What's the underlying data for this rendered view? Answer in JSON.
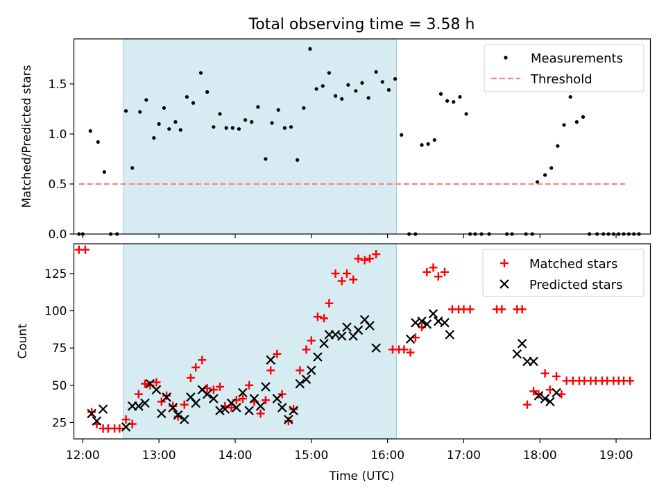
{
  "chart_data": [
    {
      "type": "scatter",
      "title": "Total observing time = 3.58 h",
      "ylabel": "Matched/Predicted stars",
      "xlabel": "",
      "xlim": [
        "11:53",
        "19:27"
      ],
      "ylim": [
        0,
        1.95
      ],
      "x_ticks": [
        "12:00",
        "13:00",
        "14:00",
        "15:00",
        "16:00",
        "17:00",
        "18:00",
        "19:00"
      ],
      "y_ticks": [
        0.0,
        0.5,
        1.0,
        1.5
      ],
      "y_tick_labels": [
        "0.0",
        "0.5",
        "1.0",
        "1.5"
      ],
      "legend": "top-right",
      "shaded_interval": {
        "start": "12:32",
        "end": "16:07",
        "color": "#add8e6"
      },
      "series": [
        {
          "name": "Measurements",
          "marker": "dot",
          "color": "#000000",
          "points": [
            [
              "11:57",
              0.0
            ],
            [
              "12:00",
              0.0
            ],
            [
              "12:06",
              1.03
            ],
            [
              "12:12",
              0.92
            ],
            [
              "12:17",
              0.62
            ],
            [
              "12:22",
              0.0
            ],
            [
              "12:27",
              0.0
            ],
            [
              "12:34",
              1.23
            ],
            [
              "12:39",
              0.66
            ],
            [
              "12:45",
              1.22
            ],
            [
              "12:50",
              1.34
            ],
            [
              "12:56",
              0.96
            ],
            [
              "13:00",
              1.1
            ],
            [
              "13:04",
              1.26
            ],
            [
              "13:08",
              1.05
            ],
            [
              "13:13",
              1.12
            ],
            [
              "13:17",
              1.04
            ],
            [
              "13:22",
              1.37
            ],
            [
              "13:27",
              1.31
            ],
            [
              "13:33",
              1.61
            ],
            [
              "13:38",
              1.42
            ],
            [
              "13:43",
              1.07
            ],
            [
              "13:48",
              1.2
            ],
            [
              "13:53",
              1.06
            ],
            [
              "13:58",
              1.06
            ],
            [
              "14:03",
              1.05
            ],
            [
              "14:08",
              1.14
            ],
            [
              "14:13",
              1.12
            ],
            [
              "14:18",
              1.27
            ],
            [
              "14:24",
              0.75
            ],
            [
              "14:29",
              1.11
            ],
            [
              "14:34",
              1.24
            ],
            [
              "14:39",
              1.06
            ],
            [
              "14:44",
              1.07
            ],
            [
              "14:49",
              0.74
            ],
            [
              "14:54",
              1.26
            ],
            [
              "14:59",
              1.85
            ],
            [
              "15:04",
              1.45
            ],
            [
              "15:09",
              1.48
            ],
            [
              "15:14",
              1.61
            ],
            [
              "15:19",
              1.38
            ],
            [
              "15:24",
              1.35
            ],
            [
              "15:29",
              1.49
            ],
            [
              "15:35",
              1.43
            ],
            [
              "15:40",
              1.51
            ],
            [
              "15:45",
              1.36
            ],
            [
              "15:51",
              1.62
            ],
            [
              "15:56",
              1.52
            ],
            [
              "16:01",
              1.44
            ],
            [
              "16:06",
              1.55
            ],
            [
              "16:11",
              0.99
            ],
            [
              "16:17",
              0.0
            ],
            [
              "16:22",
              0.0
            ],
            [
              "16:27",
              0.89
            ],
            [
              "16:32",
              0.9
            ],
            [
              "16:37",
              0.94
            ],
            [
              "16:42",
              1.4
            ],
            [
              "16:47",
              1.33
            ],
            [
              "16:52",
              1.32
            ],
            [
              "16:57",
              1.37
            ],
            [
              "17:02",
              1.2
            ],
            [
              "17:05",
              0.0
            ],
            [
              "17:09",
              0.0
            ],
            [
              "17:14",
              0.0
            ],
            [
              "17:20",
              0.0
            ],
            [
              "17:34",
              0.0
            ],
            [
              "17:38",
              0.0
            ],
            [
              "17:49",
              0.0
            ],
            [
              "17:54",
              0.0
            ],
            [
              "17:58",
              0.52
            ],
            [
              "18:04",
              0.59
            ],
            [
              "18:09",
              0.66
            ],
            [
              "18:14",
              0.88
            ],
            [
              "18:19",
              1.09
            ],
            [
              "18:24",
              1.37
            ],
            [
              "18:29",
              1.12
            ],
            [
              "18:34",
              1.17
            ],
            [
              "18:39",
              0.0
            ],
            [
              "18:45",
              0.0
            ],
            [
              "18:50",
              0.0
            ],
            [
              "18:54",
              0.0
            ],
            [
              "18:58",
              0.0
            ],
            [
              "19:02",
              0.0
            ],
            [
              "19:06",
              0.0
            ],
            [
              "19:10",
              0.0
            ],
            [
              "19:14",
              0.0
            ],
            [
              "19:18",
              0.0
            ]
          ]
        },
        {
          "name": "Threshold",
          "marker": "dashed-line",
          "color": "#ff7f7f",
          "points": [
            [
              "11:57",
              0.5
            ],
            [
              "19:07",
              0.5
            ]
          ]
        }
      ]
    },
    {
      "type": "scatter",
      "title": "",
      "xlabel": "Time (UTC)",
      "ylabel": "Count",
      "xlim": [
        "11:53",
        "19:27"
      ],
      "ylim": [
        14,
        145
      ],
      "x_ticks": [
        "12:00",
        "13:00",
        "14:00",
        "15:00",
        "16:00",
        "17:00",
        "18:00",
        "19:00"
      ],
      "y_ticks": [
        25,
        50,
        75,
        100,
        125
      ],
      "legend": "top-right",
      "shaded_interval": {
        "start": "12:32",
        "end": "16:07",
        "color": "#add8e6"
      },
      "series": [
        {
          "name": "Matched stars",
          "marker": "plus",
          "color": "#ff0000",
          "points": [
            [
              "11:57",
              141
            ],
            [
              "12:02",
              141
            ],
            [
              "12:07",
              32
            ],
            [
              "12:11",
              24
            ],
            [
              "12:16",
              21
            ],
            [
              "12:20",
              21
            ],
            [
              "12:25",
              21
            ],
            [
              "12:29",
              21
            ],
            [
              "12:34",
              27
            ],
            [
              "12:39",
              24
            ],
            [
              "12:44",
              44
            ],
            [
              "12:49",
              51
            ],
            [
              "12:53",
              50
            ],
            [
              "12:58",
              52
            ],
            [
              "13:02",
              39
            ],
            [
              "13:06",
              43
            ],
            [
              "13:11",
              36
            ],
            [
              "13:15",
              29
            ],
            [
              "13:20",
              37
            ],
            [
              "13:25",
              55
            ],
            [
              "13:29",
              62
            ],
            [
              "13:34",
              67
            ],
            [
              "13:38",
              48
            ],
            [
              "13:43",
              47
            ],
            [
              "13:48",
              49
            ],
            [
              "13:52",
              36
            ],
            [
              "13:57",
              35
            ],
            [
              "14:01",
              40
            ],
            [
              "14:06",
              41
            ],
            [
              "14:11",
              50
            ],
            [
              "14:15",
              39
            ],
            [
              "14:20",
              31
            ],
            [
              "14:24",
              40
            ],
            [
              "14:28",
              60
            ],
            [
              "14:33",
              71
            ],
            [
              "14:37",
              44
            ],
            [
              "14:42",
              26
            ],
            [
              "14:46",
              34
            ],
            [
              "14:51",
              60
            ],
            [
              "14:56",
              74
            ],
            [
              "15:00",
              80
            ],
            [
              "15:05",
              96
            ],
            [
              "15:10",
              95
            ],
            [
              "15:14",
              105
            ],
            [
              "15:19",
              125
            ],
            [
              "15:24",
              120
            ],
            [
              "15:28",
              125
            ],
            [
              "15:33",
              121
            ],
            [
              "15:37",
              135
            ],
            [
              "15:42",
              134
            ],
            [
              "15:46",
              135
            ],
            [
              "15:51",
              138
            ],
            [
              "16:04",
              74
            ],
            [
              "16:09",
              74
            ],
            [
              "16:13",
              74
            ],
            [
              "16:18",
              72
            ],
            [
              "16:22",
              82
            ],
            [
              "16:27",
              89
            ],
            [
              "16:31",
              126
            ],
            [
              "16:36",
              129
            ],
            [
              "16:40",
              123
            ],
            [
              "16:45",
              126
            ],
            [
              "16:51",
              101
            ],
            [
              "16:56",
              101
            ],
            [
              "17:00",
              101
            ],
            [
              "17:05",
              101
            ],
            [
              "17:26",
              101
            ],
            [
              "17:30",
              101
            ],
            [
              "17:42",
              101
            ],
            [
              "17:46",
              101
            ],
            [
              "17:50",
              37
            ],
            [
              "17:55",
              46
            ],
            [
              "17:59",
              44
            ],
            [
              "18:04",
              58
            ],
            [
              "18:08",
              47
            ],
            [
              "18:13",
              56
            ],
            [
              "18:17",
              44
            ],
            [
              "18:21",
              53
            ],
            [
              "18:26",
              53
            ],
            [
              "18:31",
              53
            ],
            [
              "18:35",
              53
            ],
            [
              "18:40",
              53
            ],
            [
              "18:44",
              53
            ],
            [
              "18:49",
              53
            ],
            [
              "18:53",
              53
            ],
            [
              "18:58",
              53
            ],
            [
              "19:02",
              53
            ],
            [
              "19:06",
              53
            ],
            [
              "19:11",
              53
            ]
          ]
        },
        {
          "name": "Predicted stars",
          "marker": "x",
          "color": "#000000",
          "points": [
            [
              "12:07",
              31
            ],
            [
              "12:11",
              26
            ],
            [
              "12:16",
              34
            ],
            [
              "12:34",
              22
            ],
            [
              "12:39",
              36
            ],
            [
              "12:44",
              36
            ],
            [
              "12:49",
              38
            ],
            [
              "12:53",
              51
            ],
            [
              "12:58",
              47
            ],
            [
              "13:02",
              31
            ],
            [
              "13:06",
              42
            ],
            [
              "13:11",
              35
            ],
            [
              "13:15",
              30
            ],
            [
              "13:20",
              27
            ],
            [
              "13:25",
              42
            ],
            [
              "13:29",
              38
            ],
            [
              "13:34",
              47
            ],
            [
              "13:38",
              44
            ],
            [
              "13:43",
              41
            ],
            [
              "13:48",
              33
            ],
            [
              "13:52",
              34
            ],
            [
              "13:57",
              38
            ],
            [
              "14:01",
              35
            ],
            [
              "14:06",
              45
            ],
            [
              "14:11",
              33
            ],
            [
              "14:15",
              41
            ],
            [
              "14:20",
              36
            ],
            [
              "14:24",
              49
            ],
            [
              "14:28",
              67
            ],
            [
              "14:33",
              41
            ],
            [
              "14:37",
              35
            ],
            [
              "14:42",
              27
            ],
            [
              "14:46",
              33
            ],
            [
              "14:51",
              51
            ],
            [
              "14:56",
              54
            ],
            [
              "15:00",
              60
            ],
            [
              "15:05",
              69
            ],
            [
              "15:10",
              78
            ],
            [
              "15:14",
              84
            ],
            [
              "15:19",
              84
            ],
            [
              "15:24",
              83
            ],
            [
              "15:28",
              89
            ],
            [
              "15:33",
              83
            ],
            [
              "15:37",
              87
            ],
            [
              "15:42",
              94
            ],
            [
              "15:46",
              90
            ],
            [
              "15:51",
              75
            ],
            [
              "16:18",
              81
            ],
            [
              "16:22",
              92
            ],
            [
              "16:27",
              93
            ],
            [
              "16:31",
              91
            ],
            [
              "16:36",
              98
            ],
            [
              "16:40",
              93
            ],
            [
              "16:45",
              92
            ],
            [
              "16:49",
              84
            ],
            [
              "17:42",
              71
            ],
            [
              "17:46",
              78
            ],
            [
              "17:50",
              66
            ],
            [
              "17:55",
              66
            ],
            [
              "17:59",
              43
            ],
            [
              "18:04",
              41
            ],
            [
              "18:08",
              39
            ],
            [
              "18:13",
              45
            ]
          ]
        }
      ]
    }
  ]
}
